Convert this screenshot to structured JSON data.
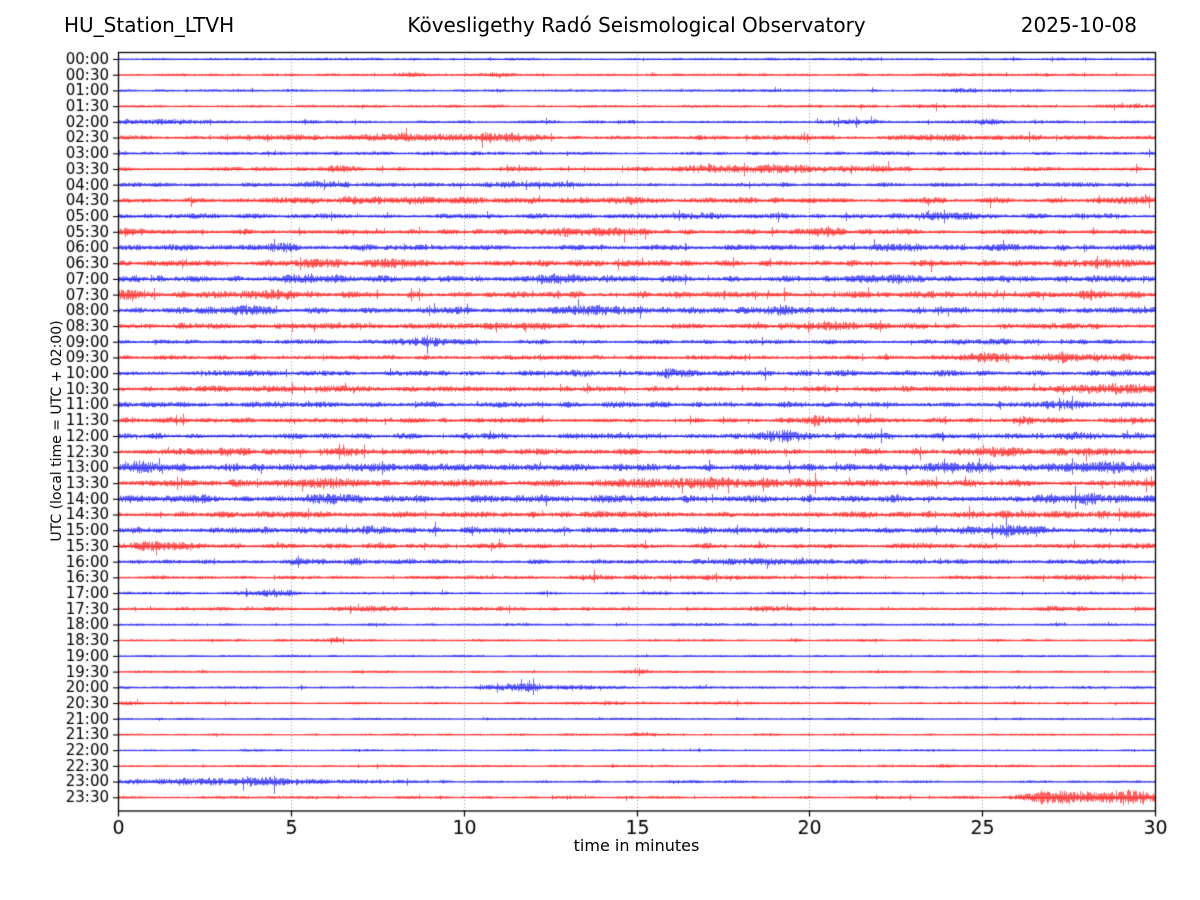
{
  "header": {
    "station": "HU_Station_LTVH",
    "observatory": "Kövesligethy Radó Seismological Observatory",
    "date": "2025-10-08"
  },
  "axes": {
    "x_label": "time in minutes",
    "y_label": "UTC (local time = UTC + 02:00)",
    "x_ticks": [
      "0",
      "5",
      "10",
      "15",
      "20",
      "25",
      "30"
    ],
    "x_tick_values": [
      0,
      5,
      10,
      15,
      20,
      25,
      30
    ],
    "grid_minutes": [
      5,
      10,
      15,
      20,
      25
    ]
  },
  "colors": {
    "blue_trace": "#0000ee",
    "red_trace": "#ff0000",
    "grid": "#7a7a7a",
    "frame": "#000000",
    "text": "#000000",
    "background": "#ffffff"
  },
  "chart_data": {
    "type": "line",
    "subtype": "helicorder-seismogram",
    "title": "HU_Station_LTVH — Kövesligethy Radó Seismological Observatory — 2025-10-08",
    "xlabel": "time in minutes",
    "ylabel": "UTC (local time = UTC + 02:00)",
    "x_range": [
      0,
      30
    ],
    "row_interval_minutes": 30,
    "grid": "vertical-dotted",
    "events_format": "[minute_center, width_minutes, peak_amplitude_px]",
    "rows": [
      {
        "time": "00:00",
        "color": "blue",
        "base": 1.1,
        "events": []
      },
      {
        "time": "00:30",
        "color": "red",
        "base": 1.1,
        "events": [
          [
            8.4,
            0.35,
            2.2
          ],
          [
            11.0,
            0.3,
            1.6
          ],
          [
            24.3,
            0.6,
            1.0
          ]
        ]
      },
      {
        "time": "01:00",
        "color": "blue",
        "base": 1.1,
        "events": [
          [
            24.5,
            0.8,
            1.6
          ]
        ]
      },
      {
        "time": "01:30",
        "color": "red",
        "base": 1.2,
        "events": [
          [
            23.5,
            0.5,
            1.8
          ],
          [
            29.6,
            0.25,
            2.2
          ]
        ]
      },
      {
        "time": "02:00",
        "color": "blue",
        "base": 1.3,
        "events": [
          [
            0.8,
            1.2,
            1.8
          ],
          [
            21.3,
            0.5,
            1.8
          ],
          [
            25.0,
            0.7,
            1.8
          ]
        ]
      },
      {
        "time": "02:30",
        "color": "red",
        "base": 1.9,
        "events": [
          [
            5.3,
            0.5,
            1.8
          ],
          [
            8.3,
            0.8,
            3.8
          ],
          [
            10.9,
            0.8,
            3.4
          ],
          [
            23.8,
            0.6,
            1.8
          ]
        ]
      },
      {
        "time": "03:00",
        "color": "blue",
        "base": 1.5,
        "events": []
      },
      {
        "time": "03:30",
        "color": "red",
        "base": 1.7,
        "events": [
          [
            6.4,
            0.4,
            2.6
          ],
          [
            17.3,
            1.2,
            2.6
          ],
          [
            19.4,
            0.8,
            2.8
          ],
          [
            21.6,
            0.7,
            2.2
          ]
        ]
      },
      {
        "time": "04:00",
        "color": "blue",
        "base": 1.7,
        "events": [
          [
            5.8,
            0.5,
            2.8
          ],
          [
            11.3,
            0.5,
            2.2
          ],
          [
            12.5,
            0.35,
            1.8
          ]
        ]
      },
      {
        "time": "04:30",
        "color": "red",
        "base": 2.4,
        "events": [
          [
            8.0,
            2.5,
            1.4
          ],
          [
            14.8,
            0.4,
            2.2
          ],
          [
            29.5,
            0.4,
            2.0
          ]
        ]
      },
      {
        "time": "05:00",
        "color": "blue",
        "base": 2.1,
        "events": [
          [
            16.5,
            0.7,
            2.2
          ],
          [
            23.9,
            0.8,
            2.4
          ]
        ]
      },
      {
        "time": "05:30",
        "color": "red",
        "base": 2.2,
        "events": [
          [
            0.3,
            0.4,
            2.8
          ],
          [
            13.8,
            1.1,
            3.2
          ],
          [
            20.4,
            0.5,
            2.6
          ]
        ]
      },
      {
        "time": "06:00",
        "color": "blue",
        "base": 2.5,
        "events": [
          [
            4.7,
            0.4,
            2.6
          ],
          [
            22.6,
            0.5,
            2.4
          ]
        ]
      },
      {
        "time": "06:30",
        "color": "red",
        "base": 2.5,
        "events": [
          [
            5.7,
            0.7,
            2.8
          ],
          [
            8.0,
            0.5,
            2.6
          ],
          [
            28.8,
            1.0,
            3.2
          ]
        ]
      },
      {
        "time": "07:00",
        "color": "blue",
        "base": 2.7,
        "events": [
          [
            5.5,
            0.5,
            3.0
          ],
          [
            12.8,
            0.7,
            2.8
          ],
          [
            22.5,
            0.7,
            2.6
          ]
        ]
      },
      {
        "time": "07:30",
        "color": "red",
        "base": 2.7,
        "events": [
          [
            0.3,
            0.3,
            3.0
          ],
          [
            4.5,
            0.5,
            3.2
          ],
          [
            28.2,
            0.4,
            3.0
          ]
        ]
      },
      {
        "time": "08:00",
        "color": "blue",
        "base": 2.7,
        "events": [
          [
            3.5,
            0.8,
            2.6
          ],
          [
            14.0,
            0.8,
            2.6
          ],
          [
            19.2,
            0.4,
            2.8
          ]
        ]
      },
      {
        "time": "08:30",
        "color": "red",
        "base": 2.5,
        "events": [
          [
            11.5,
            0.7,
            2.4
          ],
          [
            20.5,
            0.7,
            2.4
          ]
        ]
      },
      {
        "time": "09:00",
        "color": "blue",
        "base": 1.9,
        "events": [
          [
            8.8,
            0.6,
            3.6
          ],
          [
            25.3,
            0.5,
            2.0
          ]
        ]
      },
      {
        "time": "09:30",
        "color": "red",
        "base": 1.9,
        "events": [
          [
            25.2,
            0.6,
            3.6
          ],
          [
            27.3,
            0.5,
            3.8
          ],
          [
            29.0,
            0.4,
            2.6
          ]
        ]
      },
      {
        "time": "10:00",
        "color": "blue",
        "base": 2.5,
        "events": [
          [
            16.0,
            0.4,
            2.8
          ]
        ]
      },
      {
        "time": "10:30",
        "color": "red",
        "base": 2.5,
        "events": [
          [
            28.5,
            1.2,
            3.0
          ]
        ]
      },
      {
        "time": "11:00",
        "color": "blue",
        "base": 2.5,
        "events": [
          [
            27.5,
            0.4,
            3.4
          ]
        ]
      },
      {
        "time": "11:30",
        "color": "red",
        "base": 2.2,
        "events": [
          [
            20.3,
            0.35,
            3.2
          ],
          [
            26.2,
            0.35,
            2.4
          ]
        ]
      },
      {
        "time": "12:00",
        "color": "blue",
        "base": 2.5,
        "events": [
          [
            19.3,
            0.6,
            3.8
          ],
          [
            27.8,
            0.35,
            3.0
          ]
        ]
      },
      {
        "time": "12:30",
        "color": "red",
        "base": 2.5,
        "events": [
          [
            3.2,
            0.4,
            3.0
          ],
          [
            6.7,
            0.3,
            2.8
          ],
          [
            26.0,
            1.8,
            2.2
          ]
        ]
      },
      {
        "time": "13:00",
        "color": "blue",
        "base": 3.0,
        "events": [
          [
            0.5,
            0.5,
            3.4
          ],
          [
            7.0,
            0.7,
            2.8
          ],
          [
            24.5,
            0.7,
            2.8
          ],
          [
            28.6,
            1.0,
            3.2
          ]
        ]
      },
      {
        "time": "13:30",
        "color": "red",
        "base": 3.0,
        "events": [
          [
            6.2,
            0.4,
            3.4
          ],
          [
            17.0,
            2.0,
            2.8
          ]
        ]
      },
      {
        "time": "14:00",
        "color": "blue",
        "base": 2.9,
        "events": [
          [
            2.2,
            0.4,
            3.2
          ],
          [
            6.0,
            0.4,
            3.0
          ],
          [
            27.6,
            0.8,
            3.4
          ]
        ]
      },
      {
        "time": "14:30",
        "color": "red",
        "base": 2.6,
        "events": [
          [
            27.0,
            2.0,
            1.6
          ]
        ]
      },
      {
        "time": "15:00",
        "color": "blue",
        "base": 2.6,
        "events": [
          [
            7.6,
            0.4,
            3.0
          ],
          [
            26.0,
            0.8,
            3.4
          ]
        ]
      },
      {
        "time": "15:30",
        "color": "red",
        "base": 2.1,
        "events": [
          [
            1.2,
            0.9,
            3.4
          ]
        ]
      },
      {
        "time": "16:00",
        "color": "blue",
        "base": 1.9,
        "events": [
          [
            5.3,
            0.4,
            2.6
          ],
          [
            6.9,
            0.35,
            2.2
          ],
          [
            18.5,
            1.2,
            2.0
          ]
        ]
      },
      {
        "time": "16:30",
        "color": "red",
        "base": 1.5,
        "events": [
          [
            13.5,
            0.35,
            2.0
          ],
          [
            17.0,
            1.5,
            1.6
          ],
          [
            28.0,
            0.8,
            1.8
          ]
        ]
      },
      {
        "time": "17:00",
        "color": "blue",
        "base": 1.2,
        "events": [
          [
            4.5,
            0.5,
            2.8
          ]
        ]
      },
      {
        "time": "17:30",
        "color": "red",
        "base": 1.5,
        "events": [
          [
            7.2,
            0.7,
            2.0
          ],
          [
            19.0,
            0.9,
            1.6
          ],
          [
            27.6,
            0.5,
            1.8
          ]
        ]
      },
      {
        "time": "18:00",
        "color": "blue",
        "base": 1.1,
        "events": []
      },
      {
        "time": "18:30",
        "color": "red",
        "base": 1.1,
        "events": [
          [
            6.3,
            0.3,
            1.6
          ]
        ]
      },
      {
        "time": "19:00",
        "color": "blue",
        "base": 0.9,
        "events": []
      },
      {
        "time": "19:30",
        "color": "red",
        "base": 1.0,
        "events": [
          [
            15.1,
            0.3,
            1.6
          ]
        ]
      },
      {
        "time": "20:00",
        "color": "blue",
        "base": 1.1,
        "events": [
          [
            11.3,
            0.5,
            2.8
          ],
          [
            11.9,
            0.25,
            3.4
          ],
          [
            13.0,
            0.7,
            1.8
          ]
        ]
      },
      {
        "time": "20:30",
        "color": "red",
        "base": 1.0,
        "events": [
          [
            0.3,
            0.3,
            1.6
          ],
          [
            14.2,
            0.8,
            1.2
          ],
          [
            17.5,
            0.8,
            1.0
          ]
        ]
      },
      {
        "time": "21:00",
        "color": "blue",
        "base": 0.85,
        "events": []
      },
      {
        "time": "21:30",
        "color": "red",
        "base": 0.85,
        "events": [
          [
            15.1,
            0.3,
            1.8
          ]
        ]
      },
      {
        "time": "22:00",
        "color": "blue",
        "base": 0.85,
        "events": [
          [
            4.0,
            0.3,
            0.8
          ]
        ]
      },
      {
        "time": "22:30",
        "color": "red",
        "base": 0.95,
        "events": [
          [
            24.0,
            1.2,
            0.9
          ]
        ]
      },
      {
        "time": "23:00",
        "color": "blue",
        "base": 1.1,
        "events": [
          [
            2.0,
            1.2,
            3.0
          ],
          [
            4.2,
            0.7,
            3.6
          ],
          [
            6.2,
            1.2,
            1.6
          ]
        ]
      },
      {
        "time": "23:30",
        "color": "red",
        "base": 1.1,
        "events": [
          [
            26.8,
            0.5,
            3.0
          ],
          [
            27.8,
            0.9,
            5.5
          ],
          [
            29.4,
            0.5,
            7.0
          ]
        ]
      }
    ]
  }
}
